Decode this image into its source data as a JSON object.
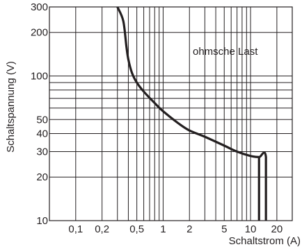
{
  "chart_data": {
    "type": "line",
    "title": "",
    "xlabel": "Schaltstrom (A)",
    "ylabel": "Schaltspannung (V)",
    "x_scale": "log",
    "y_scale": "log",
    "xlim": [
      0.05,
      30
    ],
    "ylim": [
      10,
      300
    ],
    "x_ticks": [
      {
        "value": 0.1,
        "label": "0,1"
      },
      {
        "value": 0.2,
        "label": "0,2"
      },
      {
        "value": 0.5,
        "label": "0,5"
      },
      {
        "value": 1,
        "label": "1"
      },
      {
        "value": 2,
        "label": "2"
      },
      {
        "value": 5,
        "label": "5"
      },
      {
        "value": 10,
        "label": "10"
      },
      {
        "value": 20,
        "label": "20"
      }
    ],
    "y_ticks": [
      {
        "value": 10,
        "label": "10"
      },
      {
        "value": 20,
        "label": "20"
      },
      {
        "value": 30,
        "label": "30"
      },
      {
        "value": 40,
        "label": "40"
      },
      {
        "value": 50,
        "label": "50"
      },
      {
        "value": 100,
        "label": "100"
      },
      {
        "value": 200,
        "label": "200"
      },
      {
        "value": 300,
        "label": "300"
      }
    ],
    "x_gridlines": [
      0.1,
      0.2,
      0.3,
      0.4,
      0.5,
      0.6,
      0.7,
      0.8,
      0.9,
      1,
      2,
      3,
      4,
      5,
      6,
      7,
      8,
      9,
      10,
      20,
      30
    ],
    "y_gridlines": [
      20,
      30,
      40,
      50,
      60,
      70,
      80,
      90,
      100,
      200
    ],
    "grid": true,
    "annotation": "ohmsche Last",
    "series": [
      {
        "values": [
          {
            "x": 0.3,
            "y": 300
          },
          {
            "x": 0.35,
            "y": 240
          },
          {
            "x": 0.38,
            "y": 160
          },
          {
            "x": 0.4,
            "y": 130
          },
          {
            "x": 0.44,
            "y": 105
          },
          {
            "x": 0.5,
            "y": 90
          },
          {
            "x": 0.6,
            "y": 78
          },
          {
            "x": 0.8,
            "y": 65
          },
          {
            "x": 1,
            "y": 57
          },
          {
            "x": 1.5,
            "y": 47
          },
          {
            "x": 2,
            "y": 42
          },
          {
            "x": 3,
            "y": 38
          },
          {
            "x": 5,
            "y": 33
          },
          {
            "x": 7,
            "y": 30
          },
          {
            "x": 10,
            "y": 28
          },
          {
            "x": 12.5,
            "y": 27.5
          },
          {
            "x": 15,
            "y": 27.5
          },
          {
            "x": 15,
            "y": 10
          }
        ]
      },
      {
        "values": [
          {
            "x": 12.5,
            "y": 27.5
          },
          {
            "x": 12.5,
            "y": 10
          }
        ]
      }
    ]
  }
}
